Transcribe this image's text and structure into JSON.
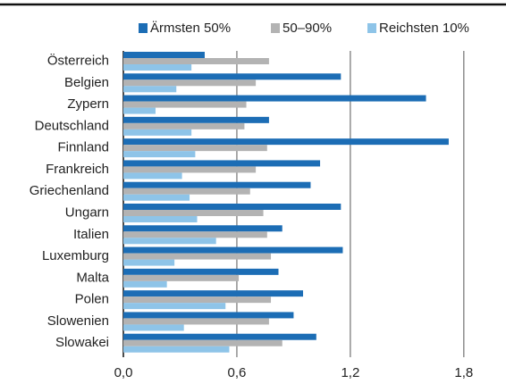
{
  "chart_data": {
    "type": "bar",
    "orientation": "horizontal",
    "categories": [
      "Österreich",
      "Belgien",
      "Zypern",
      "Deutschland",
      "Finnland",
      "Frankreich",
      "Griechenland",
      "Ungarn",
      "Italien",
      "Luxemburg",
      "Malta",
      "Polen",
      "Slowenien",
      "Slowakei"
    ],
    "series": [
      {
        "name": "Ärmsten 50%",
        "color": "#1c6db5",
        "values": [
          0.43,
          1.15,
          1.6,
          0.77,
          1.72,
          1.04,
          0.99,
          1.15,
          0.84,
          1.16,
          0.82,
          0.95,
          0.9,
          1.02
        ]
      },
      {
        "name": "50–90%",
        "color": "#b3b3b3",
        "values": [
          0.77,
          0.7,
          0.65,
          0.64,
          0.76,
          0.7,
          0.67,
          0.74,
          0.76,
          0.78,
          0.61,
          0.78,
          0.77,
          0.84
        ]
      },
      {
        "name": "Reichsten 10%",
        "color": "#8ec4e8",
        "values": [
          0.36,
          0.28,
          0.17,
          0.36,
          0.38,
          0.31,
          0.35,
          0.39,
          0.49,
          0.27,
          0.23,
          0.54,
          0.32,
          0.56
        ]
      }
    ],
    "xlim": [
      0,
      1.9
    ],
    "xticks": [
      {
        "value": 0,
        "label": "0,0"
      },
      {
        "value": 0.6,
        "label": "0,6"
      },
      {
        "value": 1.2,
        "label": "1,2"
      },
      {
        "value": 1.8,
        "label": "1,8"
      }
    ],
    "grid": true,
    "legend": "top"
  }
}
